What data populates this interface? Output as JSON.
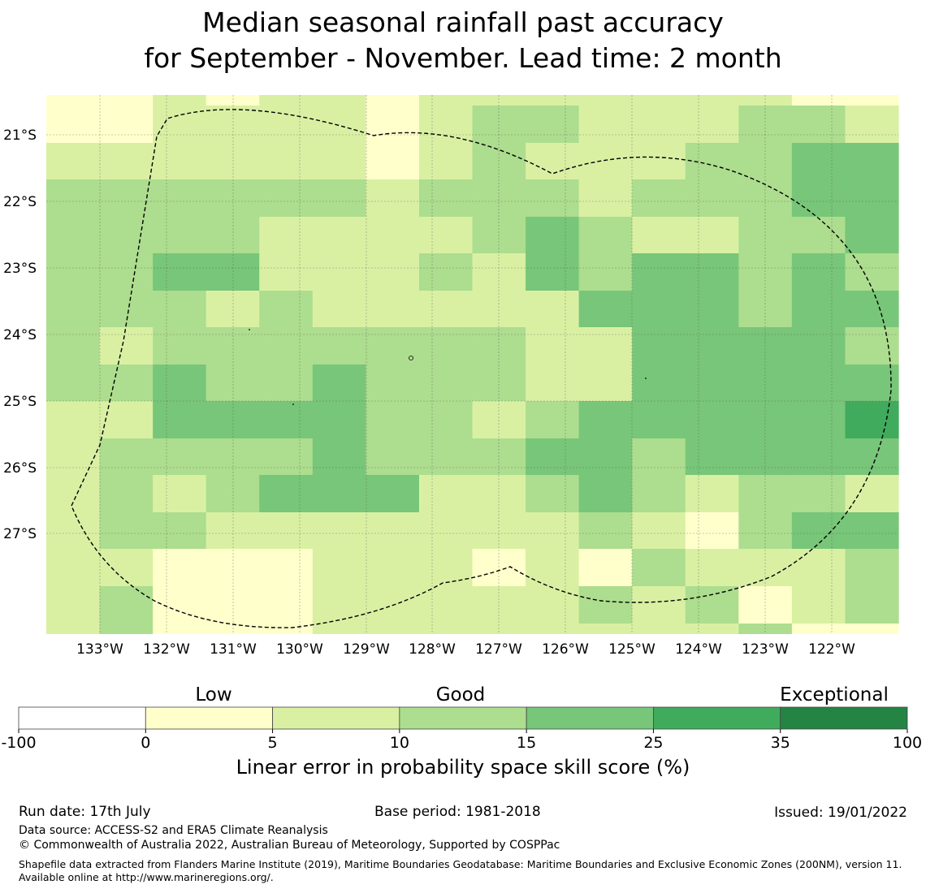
{
  "title": {
    "line1": "Median seasonal rainfall past accuracy",
    "line2": "for September - November. Lead time: 2 month"
  },
  "map": {
    "grid_columns": 16,
    "grid_rows": 15,
    "category_colors": [
      "#ffffcc",
      "#d9f0a3",
      "#addd8e",
      "#78c679",
      "#41ab5d",
      "#238443"
    ],
    "cell_categories": [
      [
        0,
        0,
        1,
        0,
        1,
        1,
        0,
        1,
        1,
        1,
        1,
        1,
        1,
        1,
        0,
        0
      ],
      [
        0,
        0,
        1,
        1,
        1,
        1,
        0,
        1,
        2,
        2,
        1,
        1,
        1,
        2,
        2,
        1
      ],
      [
        1,
        1,
        1,
        1,
        1,
        1,
        0,
        1,
        2,
        1,
        1,
        1,
        2,
        2,
        3,
        3
      ],
      [
        2,
        2,
        2,
        2,
        2,
        2,
        1,
        2,
        2,
        2,
        1,
        2,
        2,
        2,
        3,
        3
      ],
      [
        2,
        2,
        2,
        2,
        1,
        1,
        1,
        1,
        2,
        3,
        2,
        1,
        1,
        2,
        2,
        3
      ],
      [
        2,
        2,
        3,
        3,
        1,
        1,
        1,
        2,
        1,
        3,
        2,
        3,
        3,
        2,
        3,
        2
      ],
      [
        2,
        2,
        2,
        1,
        2,
        1,
        1,
        1,
        1,
        1,
        3,
        3,
        3,
        2,
        3,
        3
      ],
      [
        2,
        1,
        2,
        2,
        2,
        2,
        2,
        2,
        2,
        1,
        1,
        3,
        3,
        3,
        3,
        2
      ],
      [
        2,
        2,
        3,
        2,
        2,
        3,
        2,
        2,
        2,
        1,
        1,
        3,
        3,
        3,
        3,
        3
      ],
      [
        1,
        1,
        3,
        3,
        3,
        3,
        2,
        2,
        1,
        2,
        3,
        3,
        3,
        3,
        3,
        4
      ],
      [
        1,
        2,
        2,
        2,
        2,
        3,
        2,
        2,
        2,
        3,
        3,
        2,
        3,
        3,
        3,
        3
      ],
      [
        1,
        2,
        1,
        2,
        3,
        3,
        3,
        1,
        1,
        2,
        3,
        2,
        1,
        2,
        2,
        1
      ],
      [
        1,
        2,
        2,
        1,
        1,
        1,
        1,
        1,
        1,
        1,
        2,
        1,
        0,
        2,
        3,
        3
      ],
      [
        1,
        1,
        0,
        0,
        0,
        1,
        1,
        1,
        0,
        1,
        0,
        2,
        1,
        1,
        1,
        2
      ],
      [
        1,
        2,
        0,
        0,
        0,
        1,
        1,
        1,
        1,
        1,
        2,
        1,
        2,
        0,
        1,
        2
      ]
    ],
    "last_row_partial_categories": [
      1,
      2,
      0,
      0,
      0,
      1,
      1,
      1,
      1,
      1,
      1,
      1,
      1,
      2,
      0,
      0
    ],
    "x_tick_labels": [
      "133°W",
      "132°W",
      "131°W",
      "130°W",
      "129°W",
      "128°W",
      "127°W",
      "126°W",
      "125°W",
      "124°W",
      "123°W",
      "122°W"
    ],
    "y_tick_labels": [
      "21°S",
      "22°S",
      "23°S",
      "24°S",
      "25°S",
      "26°S",
      "27°S"
    ],
    "boundary_style": "dashed black"
  },
  "colorbar": {
    "words": {
      "low": "Low",
      "good": "Good",
      "exceptional": "Exceptional"
    },
    "tick_labels": [
      "-100",
      "0",
      "5",
      "10",
      "15",
      "25",
      "35",
      "100"
    ],
    "segment_colors": [
      "#ffffff",
      "#ffffcc",
      "#d9f0a3",
      "#addd8e",
      "#78c679",
      "#41ab5d",
      "#238443"
    ],
    "label": "Linear error in probability space skill score (%)"
  },
  "footer": {
    "run_date": "Run date: 17th July",
    "base_period": "Base period: 1981-2018",
    "issued": "Issued: 19/01/2022",
    "data_source": "Data source: ACCESS-S2 and ERA5 Climate Reanalysis",
    "copyright": "© Commonwealth of Australia 2022, Australian Bureau of Meteorology, Supported by COSPPac",
    "shapefile": "Shapefile data extracted from Flanders Marine Institute (2019), Maritime Boundaries Geodatabase: Maritime Boundaries and Exclusive Economic Zones (200NM), version 11. Available online at http://www.marineregions.org/."
  }
}
